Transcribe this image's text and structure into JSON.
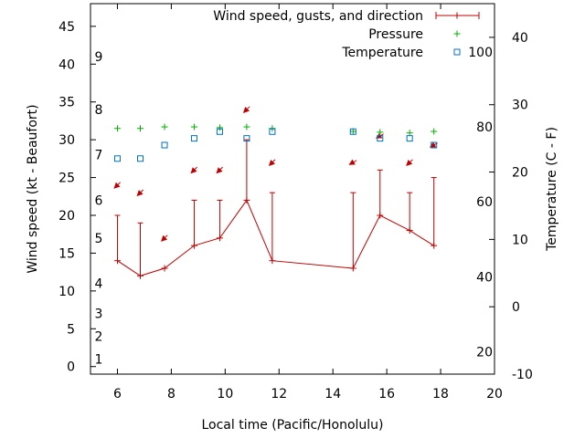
{
  "chart_data": {
    "type": "line",
    "title": "",
    "xlabel": "Local time (Pacific/Honolulu)",
    "ylabel": "Wind speed (kt - Beaufort)",
    "y2label": "Temperature (C - F)",
    "xlim": [
      5,
      20
    ],
    "ylim": [
      -1,
      48
    ],
    "y2lim": [
      -10,
      45
    ],
    "xticks": [
      6,
      8,
      10,
      12,
      14,
      16,
      18,
      20
    ],
    "yticks": [
      0,
      5,
      10,
      15,
      20,
      25,
      30,
      35,
      40,
      45
    ],
    "y2ticks": [
      -10,
      0,
      10,
      20,
      30,
      40
    ],
    "beaufort_labels": [
      {
        "label": "1",
        "kt": 1
      },
      {
        "label": "2",
        "kt": 4
      },
      {
        "label": "3",
        "kt": 7
      },
      {
        "label": "4",
        "kt": 11
      },
      {
        "label": "5",
        "kt": 17
      },
      {
        "label": "6",
        "kt": 22
      },
      {
        "label": "7",
        "kt": 28
      },
      {
        "label": "8",
        "kt": 34
      },
      {
        "label": "9",
        "kt": 41
      }
    ],
    "fahrenheit_labels": [
      {
        "label": "20",
        "c": -6.7
      },
      {
        "label": "40",
        "c": 4.4
      },
      {
        "label": "60",
        "c": 15.6
      },
      {
        "label": "80",
        "c": 26.7
      },
      {
        "label": "100",
        "c": 37.8
      }
    ],
    "legend": [
      {
        "label": "Wind speed, gusts, and direction",
        "marker": "plus-errorbar",
        "color": "#c00000"
      },
      {
        "label": "Pressure",
        "marker": "plus",
        "color": "#00b000"
      },
      {
        "label": "Temperature",
        "marker": "square",
        "color": "#0070c0"
      }
    ],
    "series": [
      {
        "name": "Wind speed, gusts, and direction",
        "color": "#c00000",
        "x": [
          6,
          6.85,
          7.75,
          8.85,
          9.8,
          10.8,
          11.75,
          14.75,
          15.75,
          16.85,
          17.75
        ],
        "speed": [
          14,
          12,
          13,
          16,
          17,
          22,
          14,
          13,
          20,
          18,
          16
        ],
        "gust": [
          20,
          19,
          13,
          22,
          22,
          30,
          23,
          23,
          26,
          23,
          25
        ],
        "direction_deg": [
          45,
          45,
          45,
          45,
          45,
          45,
          45,
          60,
          60,
          45,
          60
        ],
        "arrow_at": [
          24,
          23,
          17,
          26,
          26,
          34,
          27,
          27,
          30.5,
          27,
          29.3
        ]
      },
      {
        "name": "Pressure",
        "color": "#00b000",
        "x": [
          6,
          6.85,
          7.75,
          8.85,
          9.8,
          10.8,
          11.75,
          14.75,
          15.75,
          16.85,
          17.75
        ],
        "y": [
          31.5,
          31.5,
          31.7,
          31.7,
          31.6,
          31.7,
          31.5,
          31.1,
          31.0,
          30.9,
          31.1
        ]
      },
      {
        "name": "Temperature",
        "color": "#0070c0",
        "x": [
          6,
          6.85,
          7.75,
          8.85,
          9.8,
          10.8,
          11.75,
          14.75,
          15.75,
          16.85,
          17.75
        ],
        "y": [
          22,
          22,
          24,
          25,
          26,
          25,
          26,
          26,
          25,
          25,
          24
        ]
      }
    ],
    "grid": false,
    "legend_position": "top-right"
  }
}
